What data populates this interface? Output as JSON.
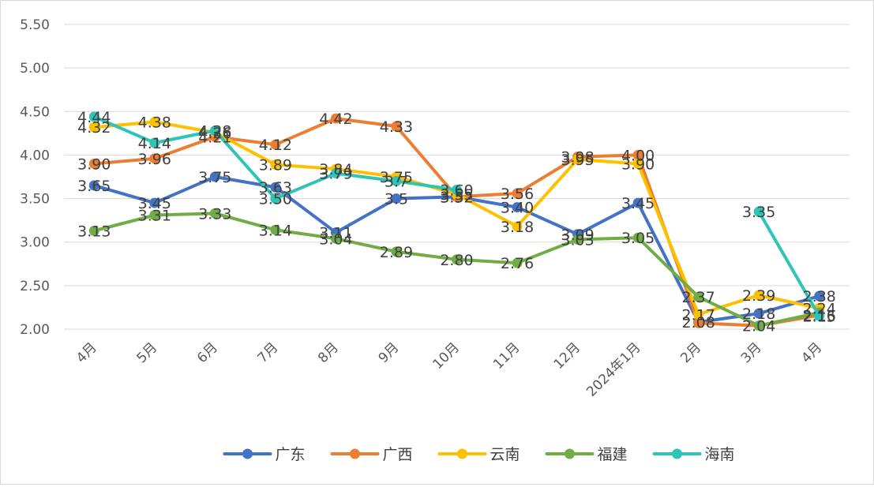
{
  "chart_data": {
    "type": "line",
    "title": "",
    "xlabel": "",
    "ylabel": "",
    "categories": [
      "4月",
      "5月",
      "6月",
      "7月",
      "8月",
      "9月",
      "10月",
      "11月",
      "12月",
      "2024年1月",
      "2月",
      "3月",
      "4月"
    ],
    "ylim": [
      2.0,
      5.5
    ],
    "yticks": [
      "2.00",
      "2.50",
      "3.00",
      "3.50",
      "4.00",
      "4.50",
      "5.00",
      "5.50"
    ],
    "grid": "horizontal",
    "legend": "bottom",
    "series": [
      {
        "name": "广东",
        "color": "#4472C4",
        "values": [
          3.65,
          3.45,
          3.75,
          3.63,
          3.11,
          3.5,
          3.52,
          3.4,
          3.09,
          3.45,
          2.08,
          2.18,
          2.38
        ],
        "labels": [
          "3.65",
          "3.45",
          "3.75",
          "3.63",
          "3.11",
          "3.5",
          "3.52",
          "3.40",
          "3.09",
          "3.45",
          "2.08",
          "2.18",
          "2.38"
        ]
      },
      {
        "name": "广西",
        "color": "#ED7D31",
        "values": [
          3.9,
          3.96,
          4.21,
          4.12,
          4.42,
          4.33,
          3.52,
          3.56,
          3.98,
          4.0,
          2.07,
          2.04,
          2.16
        ],
        "labels": [
          "3.90",
          "3.96",
          "4.21",
          "4.12",
          "4.42",
          "4.33",
          "3.52",
          "3.56",
          "3.98",
          "4.00",
          "",
          "",
          "2.16"
        ]
      },
      {
        "name": "云南",
        "color": "#FFC000",
        "values": [
          4.32,
          4.38,
          4.26,
          3.89,
          3.84,
          3.75,
          3.55,
          3.18,
          3.95,
          3.9,
          2.17,
          2.39,
          2.24
        ],
        "labels": [
          "4.32",
          "4.38",
          "4.26",
          "3.89",
          "3.84",
          "3.75",
          "3.55",
          "3.18",
          "3.95",
          "3.90",
          "2.17",
          "2.39",
          "2.24"
        ]
      },
      {
        "name": "福建",
        "color": "#70AD47",
        "values": [
          3.13,
          3.31,
          3.33,
          3.14,
          3.04,
          2.89,
          2.8,
          2.76,
          3.03,
          3.05,
          2.37,
          2.04,
          2.19
        ],
        "labels": [
          "3.13",
          "3.31",
          "3.33",
          "3.14",
          "3.04",
          "2.89",
          "2.80",
          "2.76",
          "3.03",
          "3.05",
          "2.37",
          "2.04",
          ""
        ]
      },
      {
        "name": "海南",
        "color": "#2EC4B6",
        "values": [
          4.44,
          4.14,
          4.28,
          3.5,
          3.79,
          3.7,
          3.6,
          null,
          null,
          null,
          null,
          3.35,
          2.15
        ],
        "labels": [
          "4.44",
          "4.14",
          "4.28",
          "3.50",
          "3.79",
          "3.7",
          "3.60",
          "",
          "",
          "",
          "",
          "3.35",
          "2.15"
        ]
      }
    ]
  }
}
